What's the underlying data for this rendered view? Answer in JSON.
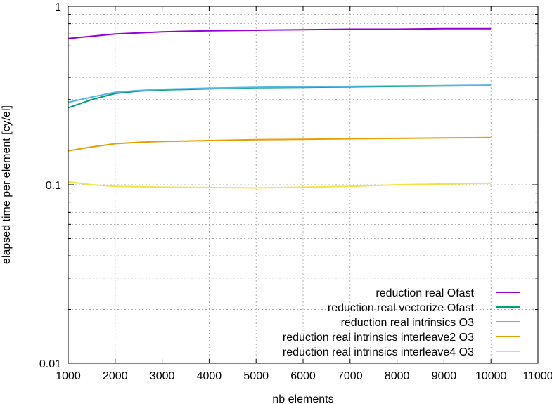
{
  "chart_data": {
    "type": "line",
    "title": "",
    "xlabel": "nb elements",
    "ylabel": "elapsed time per element [cy/el]",
    "xlim": [
      1000,
      11000
    ],
    "ylim": [
      0.01,
      1
    ],
    "yscale": "log",
    "grid": true,
    "legend_position": "bottom-right",
    "x_ticks": [
      1000,
      2000,
      3000,
      4000,
      5000,
      6000,
      7000,
      8000,
      9000,
      10000,
      11000
    ],
    "x_tick_labels": [
      "1000",
      "2000",
      "3000",
      "4000",
      "5000",
      "6000",
      "7000",
      "8000",
      "9000",
      "10000",
      "11000"
    ],
    "y_ticks": [
      0.01,
      0.1,
      1
    ],
    "y_tick_labels": [
      "0.01",
      "0.1",
      "1"
    ],
    "series": [
      {
        "name": "reduction real Ofast",
        "color": "#9400d3",
        "x": [
          1000,
          1500,
          2000,
          2500,
          3000,
          4000,
          5000,
          6000,
          7000,
          8000,
          9000,
          10000
        ],
        "y": [
          0.66,
          0.68,
          0.7,
          0.71,
          0.72,
          0.73,
          0.735,
          0.74,
          0.745,
          0.745,
          0.75,
          0.75
        ]
      },
      {
        "name": "reduction real vectorize Ofast",
        "color": "#009e73",
        "x": [
          1000,
          1500,
          2000,
          2500,
          3000,
          4000,
          5000,
          6000,
          7000,
          8000,
          9000,
          10000
        ],
        "y": [
          0.27,
          0.3,
          0.325,
          0.335,
          0.34,
          0.345,
          0.35,
          0.352,
          0.354,
          0.356,
          0.358,
          0.36
        ]
      },
      {
        "name": "reduction real intrinsics O3",
        "color": "#56b4e9",
        "x": [
          1000,
          1500,
          2000,
          2500,
          3000,
          4000,
          5000,
          6000,
          7000,
          8000,
          9000,
          10000
        ],
        "y": [
          0.29,
          0.31,
          0.33,
          0.338,
          0.343,
          0.348,
          0.352,
          0.354,
          0.356,
          0.358,
          0.36,
          0.362
        ]
      },
      {
        "name": "reduction real intrinsics interleave2 O3",
        "color": "#e69f00",
        "x": [
          1000,
          1500,
          2000,
          2500,
          3000,
          4000,
          5000,
          6000,
          7000,
          8000,
          9000,
          10000
        ],
        "y": [
          0.155,
          0.163,
          0.17,
          0.173,
          0.175,
          0.177,
          0.179,
          0.18,
          0.181,
          0.182,
          0.183,
          0.184
        ]
      },
      {
        "name": "reduction real intrinsics interleave4 O3",
        "color": "#f0e442",
        "x": [
          1000,
          1500,
          2000,
          2500,
          3000,
          4000,
          5000,
          6000,
          7000,
          8000,
          9000,
          10000
        ],
        "y": [
          0.104,
          0.1,
          0.098,
          0.0975,
          0.097,
          0.0965,
          0.096,
          0.097,
          0.098,
          0.1,
          0.101,
          0.102
        ]
      }
    ]
  }
}
